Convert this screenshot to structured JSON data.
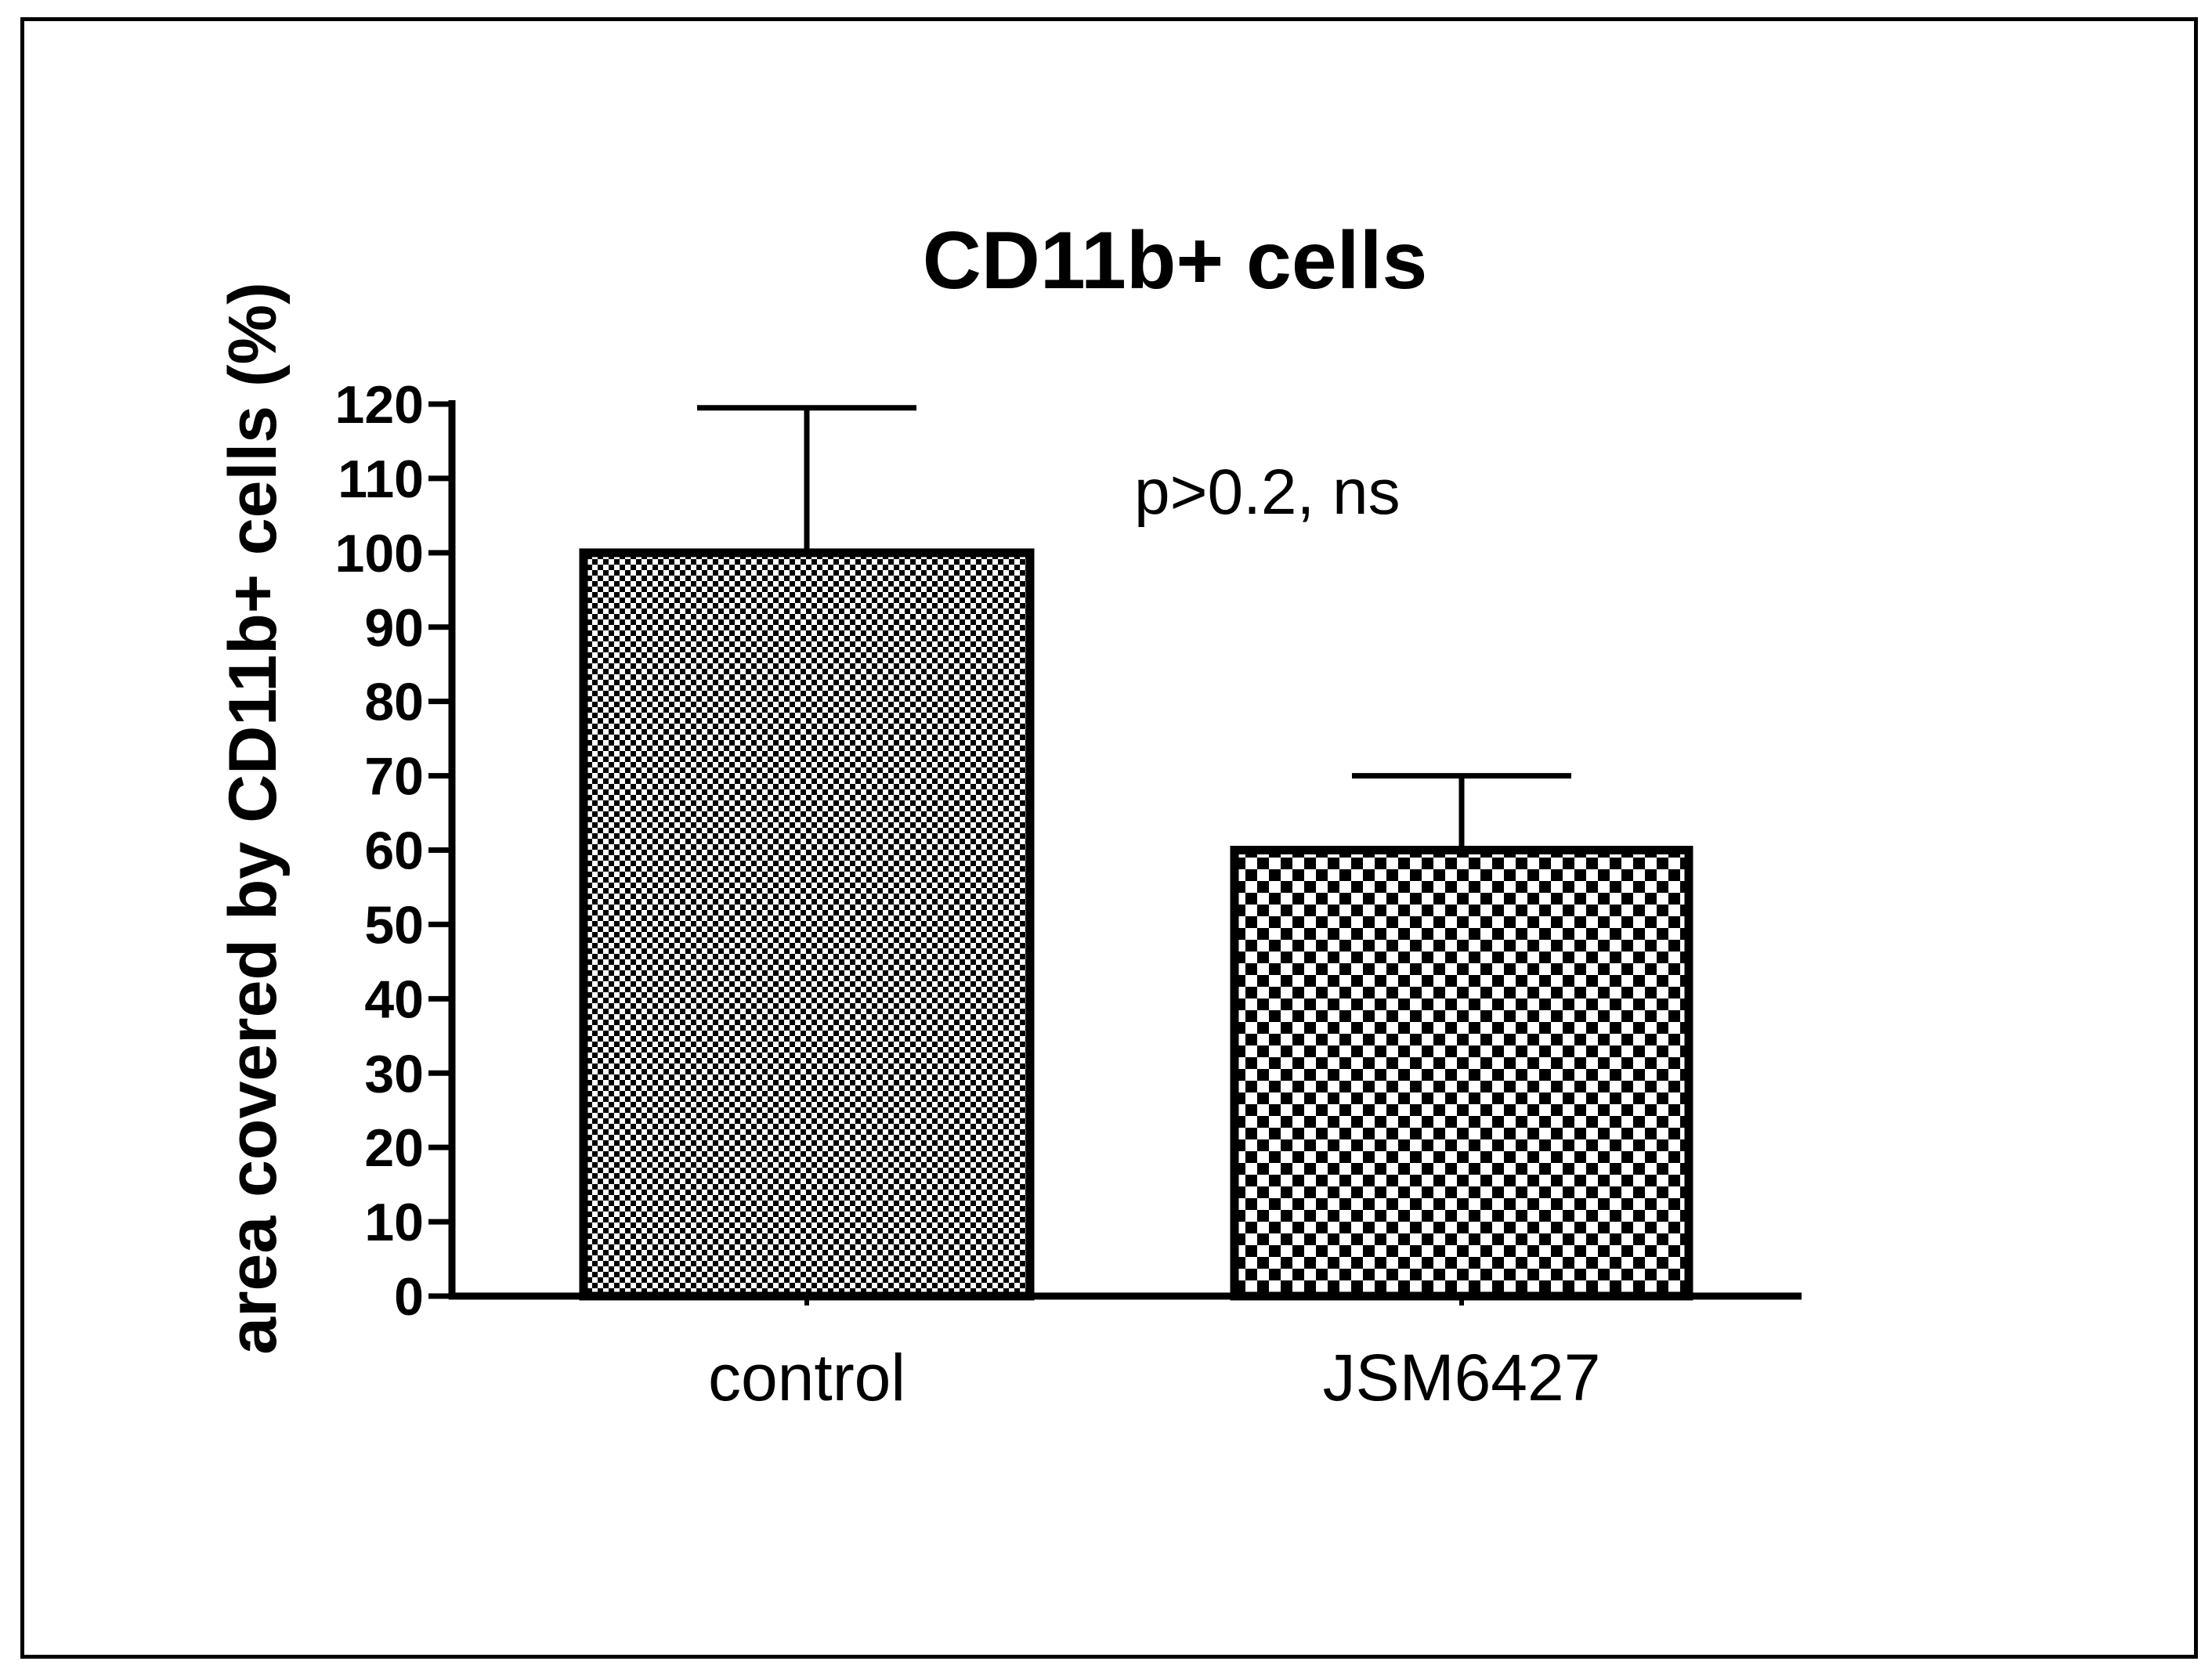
{
  "chart_data": {
    "type": "bar",
    "title": "CD11b+ cells",
    "xlabel": "",
    "ylabel": "area covered by CD11b+ cells (%)",
    "categories": [
      "control",
      "JSM6427"
    ],
    "values": [
      100,
      60
    ],
    "error_bars": [
      19.5,
      10
    ],
    "ylim": [
      0,
      120
    ],
    "yticks": [
      "0",
      "10",
      "20",
      "30",
      "40",
      "50",
      "60",
      "70",
      "80",
      "90",
      "100",
      "110",
      "120"
    ],
    "annotation": "p>0.2, ns",
    "grid": false,
    "legend": "none",
    "bar_fill": "checkerboard",
    "colors": {
      "bar_dark": "#000000",
      "bar_light": "#ffffff",
      "axis": "#000000"
    }
  }
}
